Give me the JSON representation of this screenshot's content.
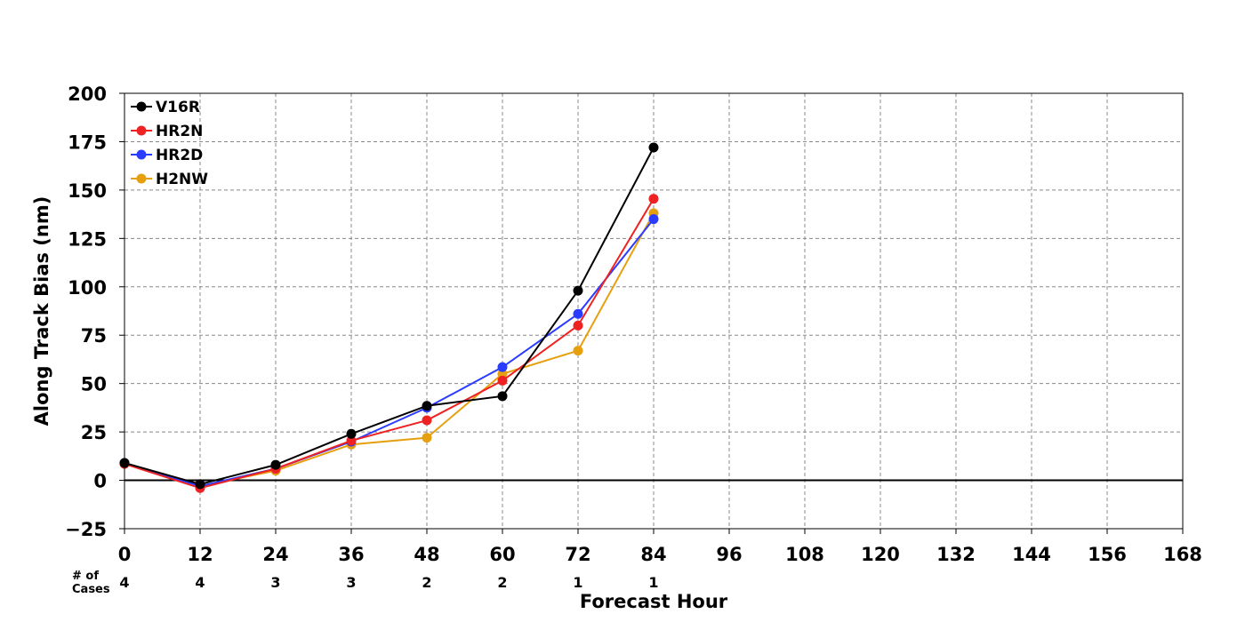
{
  "chart_data": {
    "type": "line",
    "xlabel": "Forecast Hour",
    "ylabel": "Along Track Bias (nm)",
    "xlim": [
      0,
      168
    ],
    "ylim": [
      -25,
      200
    ],
    "xticks": [
      "0",
      "12",
      "24",
      "36",
      "48",
      "60",
      "72",
      "84",
      "96",
      "108",
      "120",
      "132",
      "144",
      "156",
      "168"
    ],
    "yticks": [
      "200",
      "175",
      "150",
      "125",
      "100",
      "75",
      "50",
      "25",
      "0",
      "−25"
    ],
    "grid": true,
    "legend_position": "top-left",
    "x": [
      0,
      12,
      24,
      36,
      48,
      60,
      72,
      84
    ],
    "series": [
      {
        "name": "V16R",
        "color": "#000000",
        "values": [
          9,
          -2,
          8,
          24,
          38.5,
          43.5,
          98,
          172
        ]
      },
      {
        "name": "HR2N",
        "color": "#ee2222",
        "values": [
          8.5,
          -4,
          6,
          20.5,
          31,
          51.5,
          80,
          145.5
        ]
      },
      {
        "name": "HR2D",
        "color": "#2a3cff",
        "values": [
          9,
          -3,
          6,
          20,
          37.5,
          58.5,
          86,
          135
        ]
      },
      {
        "name": "H2NW",
        "color": "#e6a00f",
        "values": [
          8.5,
          -3,
          5,
          18.5,
          22,
          55,
          67,
          138
        ]
      }
    ],
    "cases": {
      "label": "# of Cases",
      "values": [
        "4",
        "4",
        "3",
        "3",
        "2",
        "2",
        "1",
        "1"
      ]
    }
  }
}
